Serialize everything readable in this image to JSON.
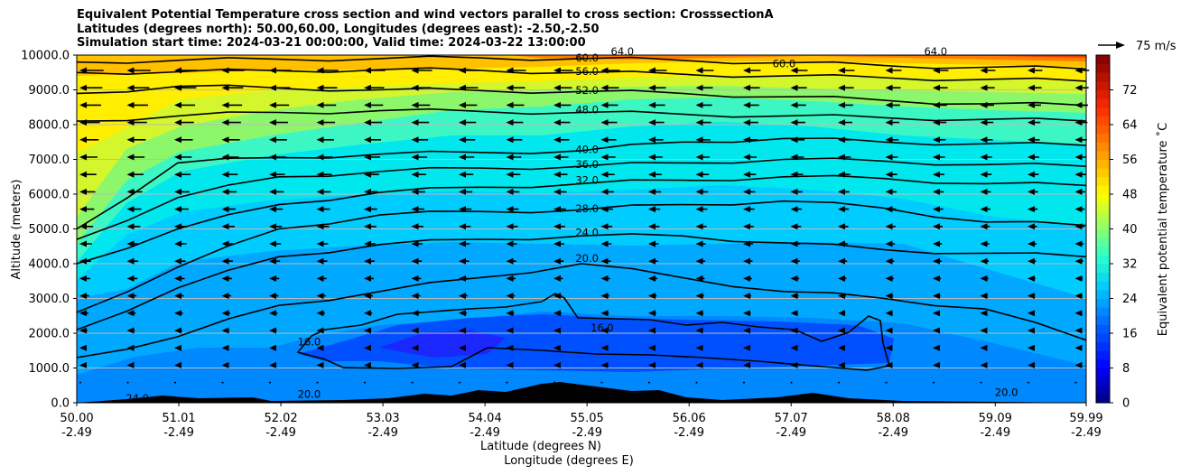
{
  "chart_data": {
    "type": "contour",
    "title_lines": [
      "Equivalent Potential Temperature cross section and wind vectors parallel to cross section: CrosssectionA",
      "Latitudes (degrees north): 50.00,60.00, Longitudes (degrees east): -2.50,-2.50",
      "Simulation start time: 2024-03-21 00:00:00, Valid time: 2024-03-22 13:00:00"
    ],
    "xlabel_lat": "Latitude (degrees N)",
    "xlabel_lon": "Longitude (degrees E)",
    "ylabel": "Altitude (meters)",
    "x_range": [
      50.0,
      59.99
    ],
    "x_ticks": [
      {
        "lat": "50.00",
        "lon": "-2.49",
        "value": 50.0
      },
      {
        "lat": "51.01",
        "lon": "-2.49",
        "value": 51.01
      },
      {
        "lat": "52.02",
        "lon": "-2.49",
        "value": 52.02
      },
      {
        "lat": "53.03",
        "lon": "-2.49",
        "value": 53.03
      },
      {
        "lat": "54.04",
        "lon": "-2.49",
        "value": 54.04
      },
      {
        "lat": "55.05",
        "lon": "-2.49",
        "value": 55.05
      },
      {
        "lat": "56.06",
        "lon": "-2.49",
        "value": 56.06
      },
      {
        "lat": "57.07",
        "lon": "-2.49",
        "value": 57.07
      },
      {
        "lat": "58.08",
        "lon": "-2.49",
        "value": 58.08
      },
      {
        "lat": "59.09",
        "lon": "-2.49",
        "value": 59.09
      },
      {
        "lat": "59.99",
        "lon": "-2.49",
        "value": 59.99
      }
    ],
    "y_range": [
      0,
      10000
    ],
    "y_ticks": [
      {
        "label": "0.0",
        "value": 0
      },
      {
        "label": "1000.0",
        "value": 1000
      },
      {
        "label": "2000.0",
        "value": 2000
      },
      {
        "label": "3000.0",
        "value": 3000
      },
      {
        "label": "4000.0",
        "value": 4000
      },
      {
        "label": "5000.0",
        "value": 5000
      },
      {
        "label": "6000.0",
        "value": 6000
      },
      {
        "label": "7000.0",
        "value": 7000
      },
      {
        "label": "8000.0",
        "value": 8000
      },
      {
        "label": "9000.0",
        "value": 9000
      },
      {
        "label": "10000.0",
        "value": 10000
      }
    ],
    "grid": "horizontal",
    "colorbar": {
      "label": "Equivalent potential temperature ˚C",
      "range": [
        0,
        80
      ],
      "ticks": [
        "0",
        "8",
        "16",
        "24",
        "32",
        "40",
        "48",
        "56",
        "64",
        "72"
      ],
      "tick_values": [
        0,
        8,
        16,
        24,
        32,
        40,
        48,
        56,
        64,
        72
      ]
    },
    "quiver_key": {
      "label": "75 m/s"
    },
    "contour_labels": [
      {
        "text": "60.0",
        "lat": 55.05,
        "alt": 9870
      },
      {
        "text": "56.0",
        "lat": 55.05,
        "alt": 9480
      },
      {
        "text": "52.0",
        "lat": 55.05,
        "alt": 8930
      },
      {
        "text": "48.0",
        "lat": 55.05,
        "alt": 8380
      },
      {
        "text": "40.0",
        "lat": 55.05,
        "alt": 7240
      },
      {
        "text": "36.0",
        "lat": 55.05,
        "alt": 6800
      },
      {
        "text": "32.0",
        "lat": 55.05,
        "alt": 6350
      },
      {
        "text": "28.0",
        "lat": 55.05,
        "alt": 5530
      },
      {
        "text": "24.0",
        "lat": 55.05,
        "alt": 4850
      },
      {
        "text": "20.0",
        "lat": 55.05,
        "alt": 4100
      },
      {
        "text": "16.0",
        "lat": 55.2,
        "alt": 2100
      },
      {
        "text": "60.0",
        "lat": 57.0,
        "alt": 9700
      },
      {
        "text": "64.0",
        "lat": 55.4,
        "alt": 10050
      },
      {
        "text": "64.0",
        "lat": 58.5,
        "alt": 10050
      },
      {
        "text": "16.0",
        "lat": 52.3,
        "alt": 1700
      },
      {
        "text": "20.0",
        "lat": 52.3,
        "alt": 200
      },
      {
        "text": "20.0",
        "lat": 59.2,
        "alt": 250
      },
      {
        "text": "24.0",
        "lat": 50.6,
        "alt": 80
      }
    ],
    "contour_levels": [
      {
        "level": 60,
        "alt": [
          9800,
          9850,
          9880,
          9900,
          9920,
          9900,
          9850,
          9780,
          9700,
          9650,
          9600
        ]
      },
      {
        "level": 56,
        "alt": [
          9500,
          9520,
          9550,
          9580,
          9560,
          9500,
          9450,
          9400,
          9350,
          9300,
          9250
        ]
      },
      {
        "level": 52,
        "alt": [
          8900,
          9100,
          9050,
          9000,
          8980,
          8950,
          8900,
          8800,
          8700,
          8600,
          8550
        ]
      },
      {
        "level": 48,
        "alt": [
          8100,
          8250,
          8350,
          8400,
          8380,
          8350,
          8300,
          8250,
          8200,
          8150,
          8100
        ]
      },
      {
        "level": 40,
        "alt": [
          5000,
          6900,
          7050,
          7150,
          7200,
          7250,
          7500,
          7600,
          7500,
          7450,
          7400
        ]
      },
      {
        "level": 36,
        "alt": [
          4700,
          5900,
          6500,
          6650,
          6750,
          6800,
          6900,
          7000,
          6950,
          6850,
          6800
        ]
      },
      {
        "level": 32,
        "alt": [
          4000,
          5000,
          5700,
          6050,
          6200,
          6300,
          6400,
          6500,
          6450,
          6300,
          6250
        ]
      },
      {
        "level": 28,
        "alt": [
          2600,
          3900,
          5000,
          5400,
          5500,
          5550,
          5700,
          5800,
          5600,
          5200,
          5100
        ]
      },
      {
        "level": 24,
        "alt": [
          2100,
          3300,
          4200,
          4550,
          4700,
          4800,
          4800,
          4600,
          4400,
          4300,
          4200
        ]
      },
      {
        "level": 20,
        "alt": [
          1300,
          1900,
          2800,
          3200,
          3600,
          4000,
          3600,
          3200,
          3000,
          2700,
          1800
        ]
      }
    ]
  }
}
